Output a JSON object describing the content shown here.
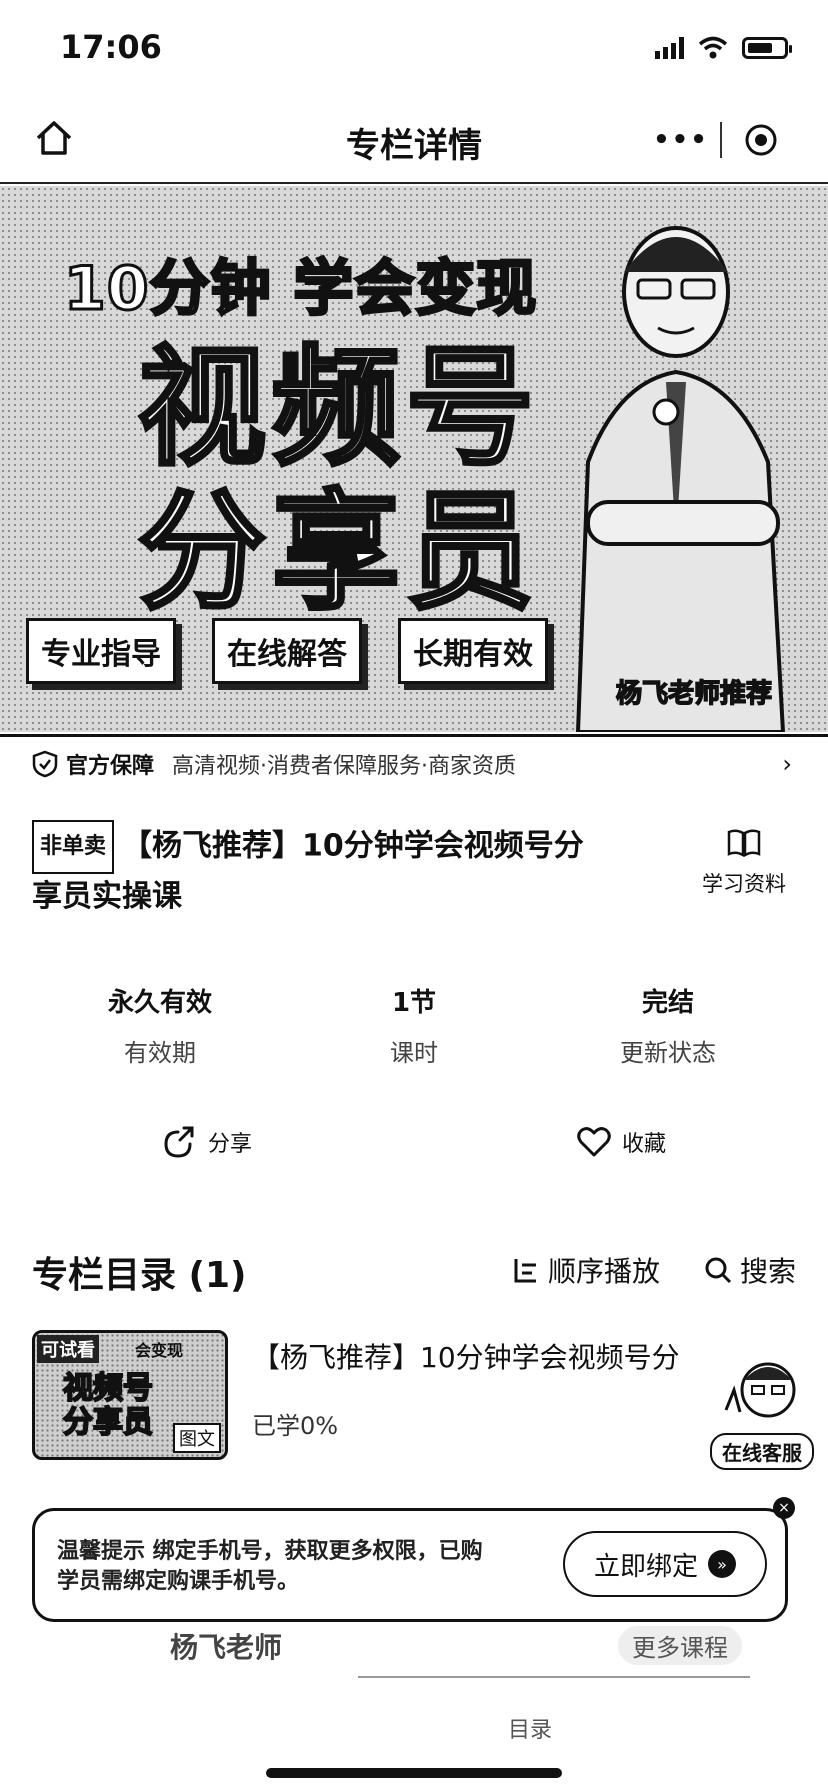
{
  "status": {
    "time": "17:06"
  },
  "nav": {
    "title": "专栏详情",
    "more": "•••"
  },
  "banner": {
    "headline": "10分钟 学会变现",
    "line2": "视频号",
    "line3": "分享员",
    "tags": [
      "专业指导",
      "在线解答",
      "长期有效"
    ],
    "recommend": "杨飞老师推荐"
  },
  "guarantee": {
    "label": "官方保障",
    "text": "高清视频·消费者保障服务·商家资质"
  },
  "course": {
    "badge": "非单卖",
    "title": "【杨飞推荐】10分钟学会视频号分享员实操课",
    "material_label": "学习资料"
  },
  "stats": [
    {
      "value": "永久有效",
      "label": "有效期"
    },
    {
      "value": "1节",
      "label": "课时"
    },
    {
      "value": "完结",
      "label": "更新状态"
    }
  ],
  "actions": {
    "share": "分享",
    "favorite": "收藏"
  },
  "catalog": {
    "heading": "专栏目录 (1)",
    "order": "顺序播放",
    "search": "搜索",
    "item": {
      "trial": "可试看",
      "thumb_top": "会变现",
      "thumb_line1": "视频号",
      "thumb_line2": "分享员",
      "thumb_type": "图文",
      "title": "【杨飞推荐】10分钟学会视频号分",
      "progress": "已学0%"
    }
  },
  "service": {
    "label": "在线客服"
  },
  "bind": {
    "text": "温馨提示 绑定手机号，获取更多权限，已购学员需绑定购课手机号。",
    "button": "立即绑定"
  },
  "teacher": {
    "name": "杨飞老师",
    "more": "更多课程"
  },
  "bottom_faded": "目录"
}
